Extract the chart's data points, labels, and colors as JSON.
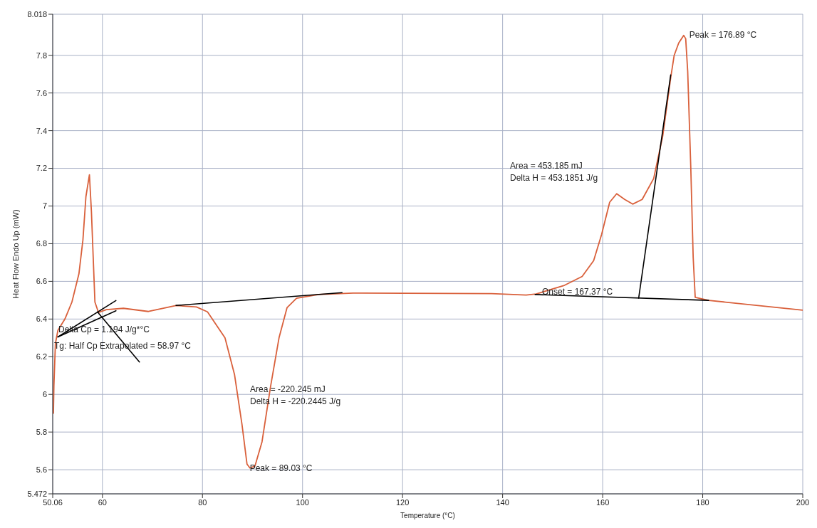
{
  "chart_data": {
    "type": "line",
    "xlabel": "Temperature (°C)",
    "ylabel": "Heat Flow Endo Up (mW)",
    "xlim": [
      50.06,
      200
    ],
    "xticks": [
      50.06,
      60,
      80,
      100,
      120,
      140,
      160,
      180,
      200
    ],
    "ylim": [
      5.472,
      8.018
    ],
    "yticks": [
      5.472,
      5.6,
      5.8,
      6.0,
      6.2,
      6.4,
      6.6,
      6.8,
      7.0,
      7.2,
      7.4,
      7.6,
      7.8,
      8.018
    ],
    "grid": true,
    "marker": "none",
    "line_style": "solid",
    "series": [
      {
        "color": "#d9603b",
        "x": [
          50.2,
          50.3,
          50.6,
          51.1,
          52.5,
          53.9,
          55.3,
          56.1,
          56.7,
          57.4,
          57.8,
          58.5,
          59.2,
          60.8,
          64.2,
          69.2,
          74.7,
          78.8,
          81.0,
          84.5,
          86.4,
          87.9,
          88.9,
          89.5,
          90.5,
          91.9,
          93.6,
          95.3,
          96.9,
          98.8,
          103.2,
          110.1,
          137.8,
          144.7,
          146.7,
          152.2,
          155.9,
          158.2,
          159.8,
          161.4,
          162.8,
          164.4,
          166.0,
          167.9,
          170.2,
          172.0,
          173.6,
          174.3,
          175.2,
          176.2,
          176.6,
          177.0,
          177.6,
          178.1,
          178.5,
          181.2,
          200
        ],
        "values": [
          5.9,
          6.045,
          6.27,
          6.34,
          6.4,
          6.49,
          6.64,
          6.82,
          7.05,
          7.166,
          6.97,
          6.49,
          6.435,
          6.45,
          6.457,
          6.44,
          6.472,
          6.464,
          6.438,
          6.3,
          6.106,
          5.84,
          5.63,
          5.609,
          5.62,
          5.748,
          6.04,
          6.3,
          6.46,
          6.51,
          6.53,
          6.538,
          6.535,
          6.527,
          6.533,
          6.577,
          6.626,
          6.71,
          6.85,
          7.02,
          7.065,
          7.035,
          7.01,
          7.035,
          7.146,
          7.37,
          7.68,
          7.8,
          7.865,
          7.906,
          7.888,
          7.715,
          7.22,
          6.725,
          6.515,
          6.499,
          6.447
        ]
      },
      {
        "color": "#000000",
        "x": [
          51.1,
          62.7
        ],
        "values": [
          6.305,
          6.498
        ]
      },
      {
        "color": "#000000",
        "x": [
          51.1,
          62.7
        ],
        "values": [
          6.305,
          6.444
        ]
      },
      {
        "color": "#000000",
        "x": [
          59.0,
          67.4
        ],
        "values": [
          6.438,
          6.172
        ]
      },
      {
        "color": "#000000",
        "x": [
          74.7,
          107.9
        ],
        "values": [
          6.472,
          6.54
        ]
      },
      {
        "color": "#000000",
        "x": [
          146.5,
          181.2
        ],
        "values": [
          6.53,
          6.499
        ]
      },
      {
        "color": "#000000",
        "x": [
          167.2,
          173.6
        ],
        "values": [
          6.511,
          7.696
        ]
      }
    ],
    "annotations": [
      {
        "text": "Peak = 176.89 °C",
        "x": 176.89,
        "y": 7.91
      },
      "Area = 453.185 mJ",
      "Delta H = 453.1851 J/g",
      "Onset = 167.37 °C",
      "Delta Cp = 1.194 J/g*°C",
      "Tg: Half Cp Extrapolated = 58.97 °C",
      "Area = -220.245 mJ",
      "Delta H = -220.2445 J/g",
      {
        "text": "Peak = 89.03 °C",
        "x": 89.03,
        "y": 5.61
      }
    ]
  }
}
